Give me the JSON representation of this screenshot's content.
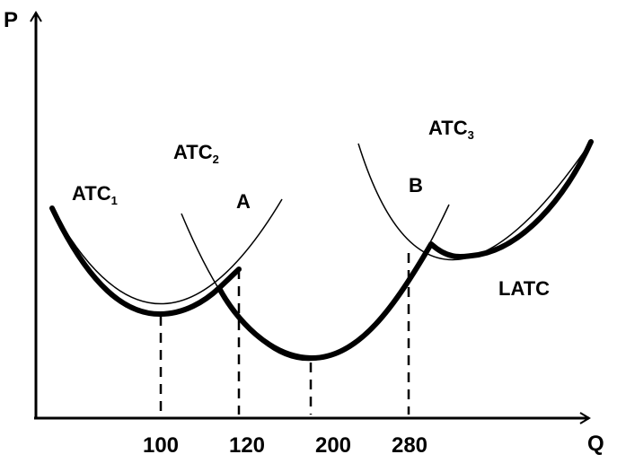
{
  "axes": {
    "y_label": "P",
    "x_label": "Q"
  },
  "curves": {
    "atc1": {
      "name": "ATC",
      "subscript": "1"
    },
    "atc2": {
      "name": "ATC",
      "subscript": "2"
    },
    "atc3": {
      "name": "ATC",
      "subscript": "3"
    },
    "latc": {
      "name": "LATC"
    }
  },
  "points": {
    "a": "A",
    "b": "B"
  },
  "x_ticks": [
    "100",
    "120",
    "200",
    "280"
  ]
}
